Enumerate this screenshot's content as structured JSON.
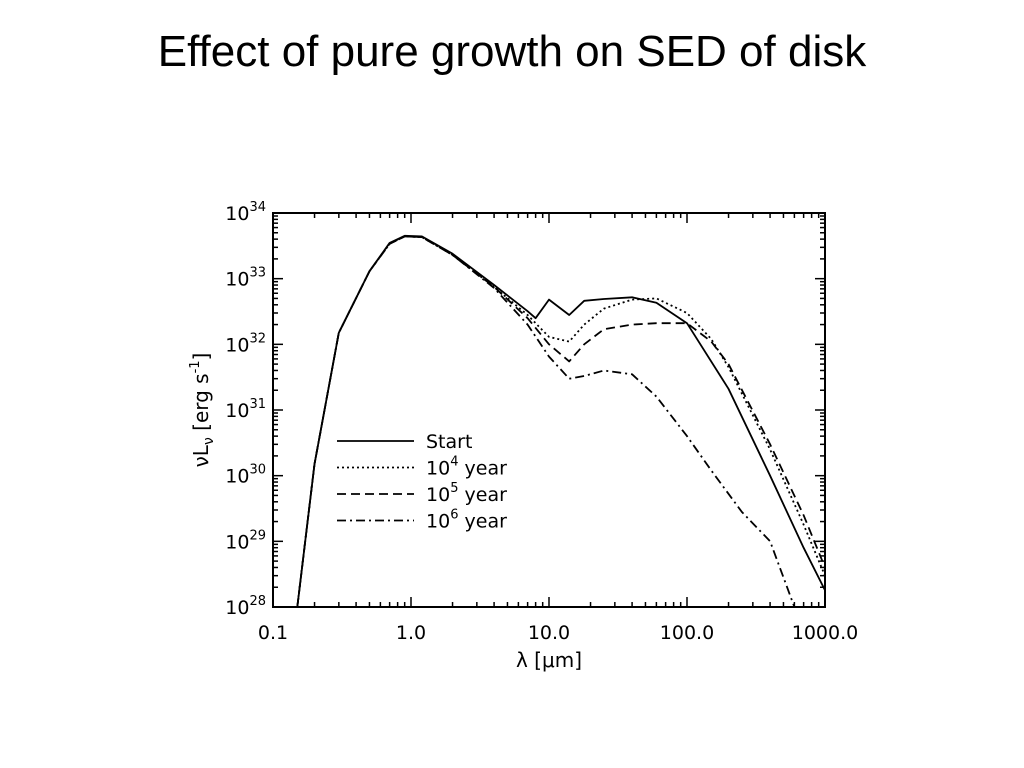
{
  "slide": {
    "title": "Effect of pure growth on SED of disk"
  },
  "chart_data": {
    "type": "line",
    "x_scale": "log",
    "y_scale": "log",
    "xlim": [
      0.1,
      1000.0
    ],
    "ylim": [
      1e+28,
      1e+34
    ],
    "xlabel": "λ [μm]",
    "ylabel": {
      "prefix": "νL",
      "sub": "ν",
      "suffix": " [erg s",
      "exp": "-1",
      "close": "]"
    },
    "x_ticks": [
      {
        "value": 0.1,
        "label": "0.1"
      },
      {
        "value": 1.0,
        "label": "1.0"
      },
      {
        "value": 10.0,
        "label": "10.0"
      },
      {
        "value": 100.0,
        "label": "100.0"
      },
      {
        "value": 1000.0,
        "label": "1000.0"
      }
    ],
    "y_ticks": [
      {
        "value": 1e+28,
        "base": "10",
        "exp": "28"
      },
      {
        "value": 1e+29,
        "base": "10",
        "exp": "29"
      },
      {
        "value": 1e+30,
        "base": "10",
        "exp": "30"
      },
      {
        "value": 1e+31,
        "base": "10",
        "exp": "31"
      },
      {
        "value": 1e+32,
        "base": "10",
        "exp": "32"
      },
      {
        "value": 1e+33,
        "base": "10",
        "exp": "33"
      },
      {
        "value": 1e+34,
        "base": "10",
        "exp": "34"
      }
    ],
    "grid": false,
    "legend_position": "center-left",
    "series": [
      {
        "name": "Start",
        "legend_base": "Start",
        "legend_exp": "",
        "legend_unit": "",
        "dash": "solid",
        "x": [
          0.15,
          0.2,
          0.3,
          0.5,
          0.7,
          0.9,
          1.2,
          2.0,
          4.0,
          7.0,
          8.0,
          10.0,
          14.0,
          18.0,
          25.0,
          40.0,
          60.0,
          100.0,
          200.0,
          400.0,
          700.0,
          1000.0
        ],
        "y": [
          1e+28,
          1.5e+30,
          1.5e+32,
          1.3e+33,
          3.5e+33,
          4.5e+33,
          4.4e+33,
          2.4e+33,
          8e+32,
          3.2e+32,
          2.5e+32,
          4.8e+32,
          2.8e+32,
          4.6e+32,
          4.9e+32,
          5.2e+32,
          4.3e+32,
          2.1e+32,
          2.1e+31,
          1e+30,
          8e+28,
          1.8e+28
        ]
      },
      {
        "name": "10^4 year",
        "legend_base": "10",
        "legend_exp": "4",
        "legend_unit": " year",
        "dash": "dotted",
        "x": [
          0.15,
          0.2,
          0.3,
          0.5,
          0.7,
          0.9,
          1.2,
          2.0,
          4.0,
          7.0,
          10.0,
          14.0,
          18.0,
          25.0,
          40.0,
          60.0,
          100.0,
          150.0,
          200.0,
          400.0,
          700.0,
          1000.0
        ],
        "y": [
          1e+28,
          1.5e+30,
          1.5e+32,
          1.3e+33,
          3.4e+33,
          4.4e+33,
          4.3e+33,
          2.3e+33,
          7.5e+32,
          2.8e+32,
          1.3e+32,
          1.1e+32,
          2e+32,
          3.5e+32,
          4.8e+32,
          5e+32,
          3e+32,
          1.2e+32,
          4.5e+31,
          2.5e+30,
          1.8e+29,
          3e+28
        ]
      },
      {
        "name": "10^5 year",
        "legend_base": "10",
        "legend_exp": "5",
        "legend_unit": " year",
        "dash": "dashed",
        "x": [
          0.15,
          0.2,
          0.3,
          0.5,
          0.7,
          0.9,
          1.2,
          2.0,
          4.0,
          7.0,
          10.0,
          14.0,
          18.0,
          25.0,
          40.0,
          60.0,
          100.0,
          150.0,
          200.0,
          400.0,
          700.0,
          1000.0
        ],
        "y": [
          1e+28,
          1.5e+30,
          1.5e+32,
          1.3e+33,
          3.4e+33,
          4.4e+33,
          4.3e+33,
          2.3e+33,
          7.5e+32,
          2.5e+32,
          1e+32,
          5.5e+31,
          1e+32,
          1.7e+32,
          2e+32,
          2.1e+32,
          2.1e+32,
          1.1e+32,
          5e+31,
          3e+30,
          2.5e+29,
          4e+28
        ]
      },
      {
        "name": "10^6 year",
        "legend_base": "10",
        "legend_exp": "6",
        "legend_unit": " year",
        "dash": "dashdot",
        "x": [
          0.15,
          0.2,
          0.3,
          0.5,
          0.7,
          0.9,
          1.2,
          2.0,
          4.0,
          7.0,
          10.0,
          14.0,
          18.0,
          25.0,
          40.0,
          60.0,
          100.0,
          150.0,
          250.0,
          400.0,
          600.0
        ],
        "y": [
          1e+28,
          1.5e+30,
          1.5e+32,
          1.3e+33,
          3.4e+33,
          4.4e+33,
          4.3e+33,
          2.3e+33,
          7.2e+32,
          2e+32,
          6.5e+31,
          3e+31,
          3.3e+31,
          4e+31,
          3.5e+31,
          1.6e+31,
          4e+30,
          1.2e+30,
          2.8e+29,
          1e+29,
          1e+28
        ]
      }
    ]
  }
}
